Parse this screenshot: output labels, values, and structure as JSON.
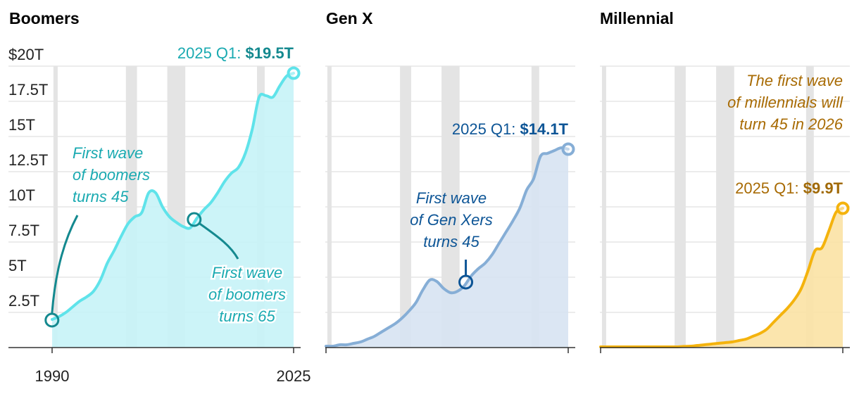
{
  "chart_data": [
    {
      "type": "area",
      "title": "Boomers",
      "color": "#5fe3ea",
      "fill": "#c6f3f7",
      "title_color": "#14898f",
      "annotation_color": "#1aaab1",
      "dark_color": "#14898f",
      "ylabels": [
        "$20T",
        "17.5T",
        "15T",
        "12.5T",
        "10T",
        "7.5T",
        "5T",
        "2.5T"
      ],
      "xlabels": [
        "1990",
        "2025"
      ],
      "ylim": [
        0,
        20
      ],
      "x": [
        1990,
        1991,
        1992,
        1993,
        1994,
        1995,
        1996,
        1997,
        1998,
        1999,
        2000,
        2001,
        2002,
        2003,
        2004,
        2005,
        2006,
        2007,
        2008,
        2009,
        2010,
        2011,
        2012,
        2013,
        2014,
        2015,
        2016,
        2017,
        2018,
        2019,
        2020,
        2021,
        2022,
        2023,
        2024,
        2025
      ],
      "values": [
        2.0,
        2.2,
        2.5,
        2.9,
        3.3,
        3.6,
        4.0,
        4.8,
        6.0,
        6.9,
        7.9,
        8.8,
        9.3,
        9.6,
        11.0,
        11.0,
        10.0,
        9.3,
        8.9,
        8.6,
        8.5,
        9.2,
        9.8,
        10.3,
        11.0,
        11.8,
        12.4,
        12.8,
        13.8,
        15.5,
        17.8,
        17.9,
        17.8,
        18.6,
        19.3,
        19.5
      ],
      "label_prefix": "2025 Q1: ",
      "label_value": "$19.5T",
      "annotations": [
        {
          "lines": [
            "First wave",
            "of boomers",
            "turns 45"
          ],
          "year": 1991
        },
        {
          "lines": [
            "First wave",
            "of boomers",
            "turns 65"
          ],
          "year": 2011
        }
      ]
    },
    {
      "type": "area",
      "title": "Gen X",
      "color": "#86aed6",
      "fill": "#d7e3f2",
      "title_color": "#4a7fa3",
      "annotation_color": "#0d5596",
      "dark_color": "#0d5596",
      "ylim": [
        0,
        20
      ],
      "x": [
        1990,
        1991,
        1992,
        1993,
        1994,
        1995,
        1996,
        1997,
        1998,
        1999,
        2000,
        2001,
        2002,
        2003,
        2004,
        2005,
        2006,
        2007,
        2008,
        2009,
        2010,
        2011,
        2012,
        2013,
        2014,
        2015,
        2016,
        2017,
        2018,
        2019,
        2020,
        2021,
        2022,
        2023,
        2024,
        2025
      ],
      "values": [
        0.1,
        0.1,
        0.2,
        0.2,
        0.3,
        0.4,
        0.6,
        0.8,
        1.1,
        1.4,
        1.7,
        2.1,
        2.6,
        3.2,
        4.1,
        4.8,
        4.7,
        4.2,
        3.9,
        4.0,
        4.4,
        5.1,
        5.6,
        6.0,
        6.6,
        7.4,
        8.2,
        9.0,
        9.9,
        11.2,
        12.0,
        13.6,
        13.8,
        14.0,
        14.2,
        14.1
      ],
      "label_prefix": "2025 Q1: ",
      "label_value": "$14.1T",
      "annotations": [
        {
          "lines": [
            "First wave",
            "of Gen Xers",
            "turns 45"
          ],
          "year": 2010
        }
      ]
    },
    {
      "type": "area",
      "title": "Millennial",
      "color": "#f4b30d",
      "fill": "#fbe2a4",
      "title_color": "#a16a07",
      "annotation_color": "#a86b04",
      "dark_color": "#a16a07",
      "ylim": [
        0,
        20
      ],
      "x": [
        1990,
        1991,
        1992,
        1993,
        1994,
        1995,
        1996,
        1997,
        1998,
        1999,
        2000,
        2001,
        2002,
        2003,
        2004,
        2005,
        2006,
        2007,
        2008,
        2009,
        2010,
        2011,
        2012,
        2013,
        2014,
        2015,
        2016,
        2017,
        2018,
        2019,
        2020,
        2021,
        2022,
        2023,
        2024,
        2025
      ],
      "values": [
        0.05,
        0.05,
        0.05,
        0.05,
        0.05,
        0.05,
        0.05,
        0.05,
        0.05,
        0.05,
        0.05,
        0.05,
        0.08,
        0.1,
        0.15,
        0.2,
        0.25,
        0.3,
        0.35,
        0.4,
        0.5,
        0.6,
        0.8,
        1.0,
        1.3,
        1.8,
        2.3,
        2.8,
        3.4,
        4.2,
        5.5,
        6.9,
        7.1,
        8.3,
        9.6,
        9.9
      ],
      "label_prefix": "2025 Q1: ",
      "label_value": "$9.9T",
      "annotations": [
        {
          "lines": [
            "The first wave",
            "of millennials will",
            "turn 45 in 2026"
          ]
        }
      ]
    }
  ],
  "recessions": [
    [
      2001,
      2002
    ],
    [
      2007,
      2009
    ],
    [
      2020,
      2020.5
    ]
  ]
}
